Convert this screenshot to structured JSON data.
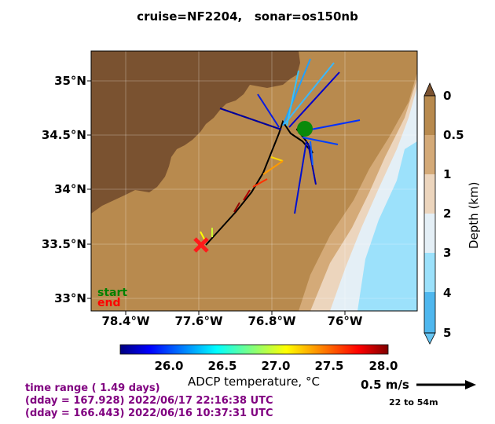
{
  "title": "cruise=NF2204,   sonar=os150nb",
  "map": {
    "lat_ticks": [
      "35°N",
      "34.5°N",
      "34°N",
      "33.5°N",
      "33°N"
    ],
    "lon_ticks": [
      "78.4°W",
      "77.6°W",
      "76.8°W",
      "76°W"
    ],
    "lon_range": [
      -78.8,
      -75.2
    ],
    "lat_range": [
      32.9,
      35.27
    ],
    "legend": {
      "start": "start",
      "end": "end"
    },
    "start_position": {
      "lon": -76.4,
      "lat": 34.58
    },
    "end_position": {
      "lon": -77.6,
      "lat": 33.5
    }
  },
  "depth_colorbar": {
    "label": "Depth (km)",
    "ticks": [
      "0",
      "0.5",
      "1",
      "2",
      "3",
      "4",
      "5"
    ],
    "colors": [
      "#b88a4e",
      "#d4aa78",
      "#ecd5bd",
      "#e4eff6",
      "#9ce1fb",
      "#4fb7ee"
    ]
  },
  "temp_colorbar": {
    "label": "ADCP temperature, °C",
    "ticks": [
      "26.0",
      "26.5",
      "27.0",
      "27.5",
      "28.0"
    ],
    "range": [
      25.5,
      28.1
    ]
  },
  "info": {
    "line1": "time range ( 1.49 days)",
    "line2": "(dday = 167.928) 2022/06/17 22:16:38 UTC",
    "line3": "(dday = 166.443) 2022/06/16 10:37:31 UTC"
  },
  "scale": {
    "label": "0.5 m/s",
    "range": "22 to 54m"
  }
}
